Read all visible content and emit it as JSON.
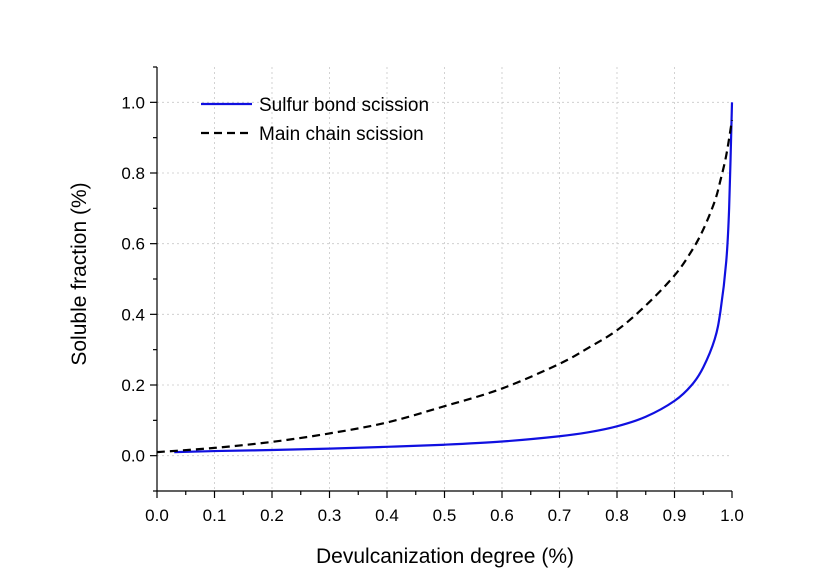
{
  "chart_data": {
    "type": "line",
    "xlabel": "Devulcanization degree (%)",
    "ylabel": "Soluble fraction (%)",
    "xlim": [
      0.0,
      1.0
    ],
    "ylim": [
      -0.1,
      1.1
    ],
    "x_ticks": [
      "0.0",
      "0.1",
      "0.2",
      "0.3",
      "0.4",
      "0.5",
      "0.6",
      "0.7",
      "0.8",
      "0.9",
      "1.0"
    ],
    "y_ticks": [
      "0.0",
      "0.2",
      "0.4",
      "0.6",
      "0.8",
      "1.0"
    ],
    "grid": true,
    "legend_position": "top-left",
    "series": [
      {
        "name": "Sulfur bond scission",
        "color": "#1010e0",
        "style": "solid",
        "x": [
          0.03,
          0.1,
          0.2,
          0.3,
          0.4,
          0.5,
          0.6,
          0.7,
          0.75,
          0.8,
          0.85,
          0.9,
          0.93,
          0.95,
          0.97,
          0.98,
          0.99,
          0.995,
          1.0
        ],
        "y": [
          0.01,
          0.013,
          0.016,
          0.02,
          0.025,
          0.031,
          0.04,
          0.055,
          0.066,
          0.083,
          0.11,
          0.155,
          0.2,
          0.25,
          0.33,
          0.41,
          0.55,
          0.7,
          1.0
        ]
      },
      {
        "name": "Main chain scission",
        "color": "#000000",
        "style": "dashed",
        "x": [
          0.0,
          0.1,
          0.2,
          0.3,
          0.4,
          0.5,
          0.6,
          0.7,
          0.75,
          0.8,
          0.85,
          0.9,
          0.93,
          0.95,
          0.97,
          0.98,
          0.99,
          1.0
        ],
        "y": [
          0.01,
          0.022,
          0.039,
          0.063,
          0.094,
          0.14,
          0.19,
          0.26,
          0.305,
          0.355,
          0.425,
          0.51,
          0.58,
          0.64,
          0.72,
          0.78,
          0.85,
          0.95
        ]
      }
    ]
  }
}
